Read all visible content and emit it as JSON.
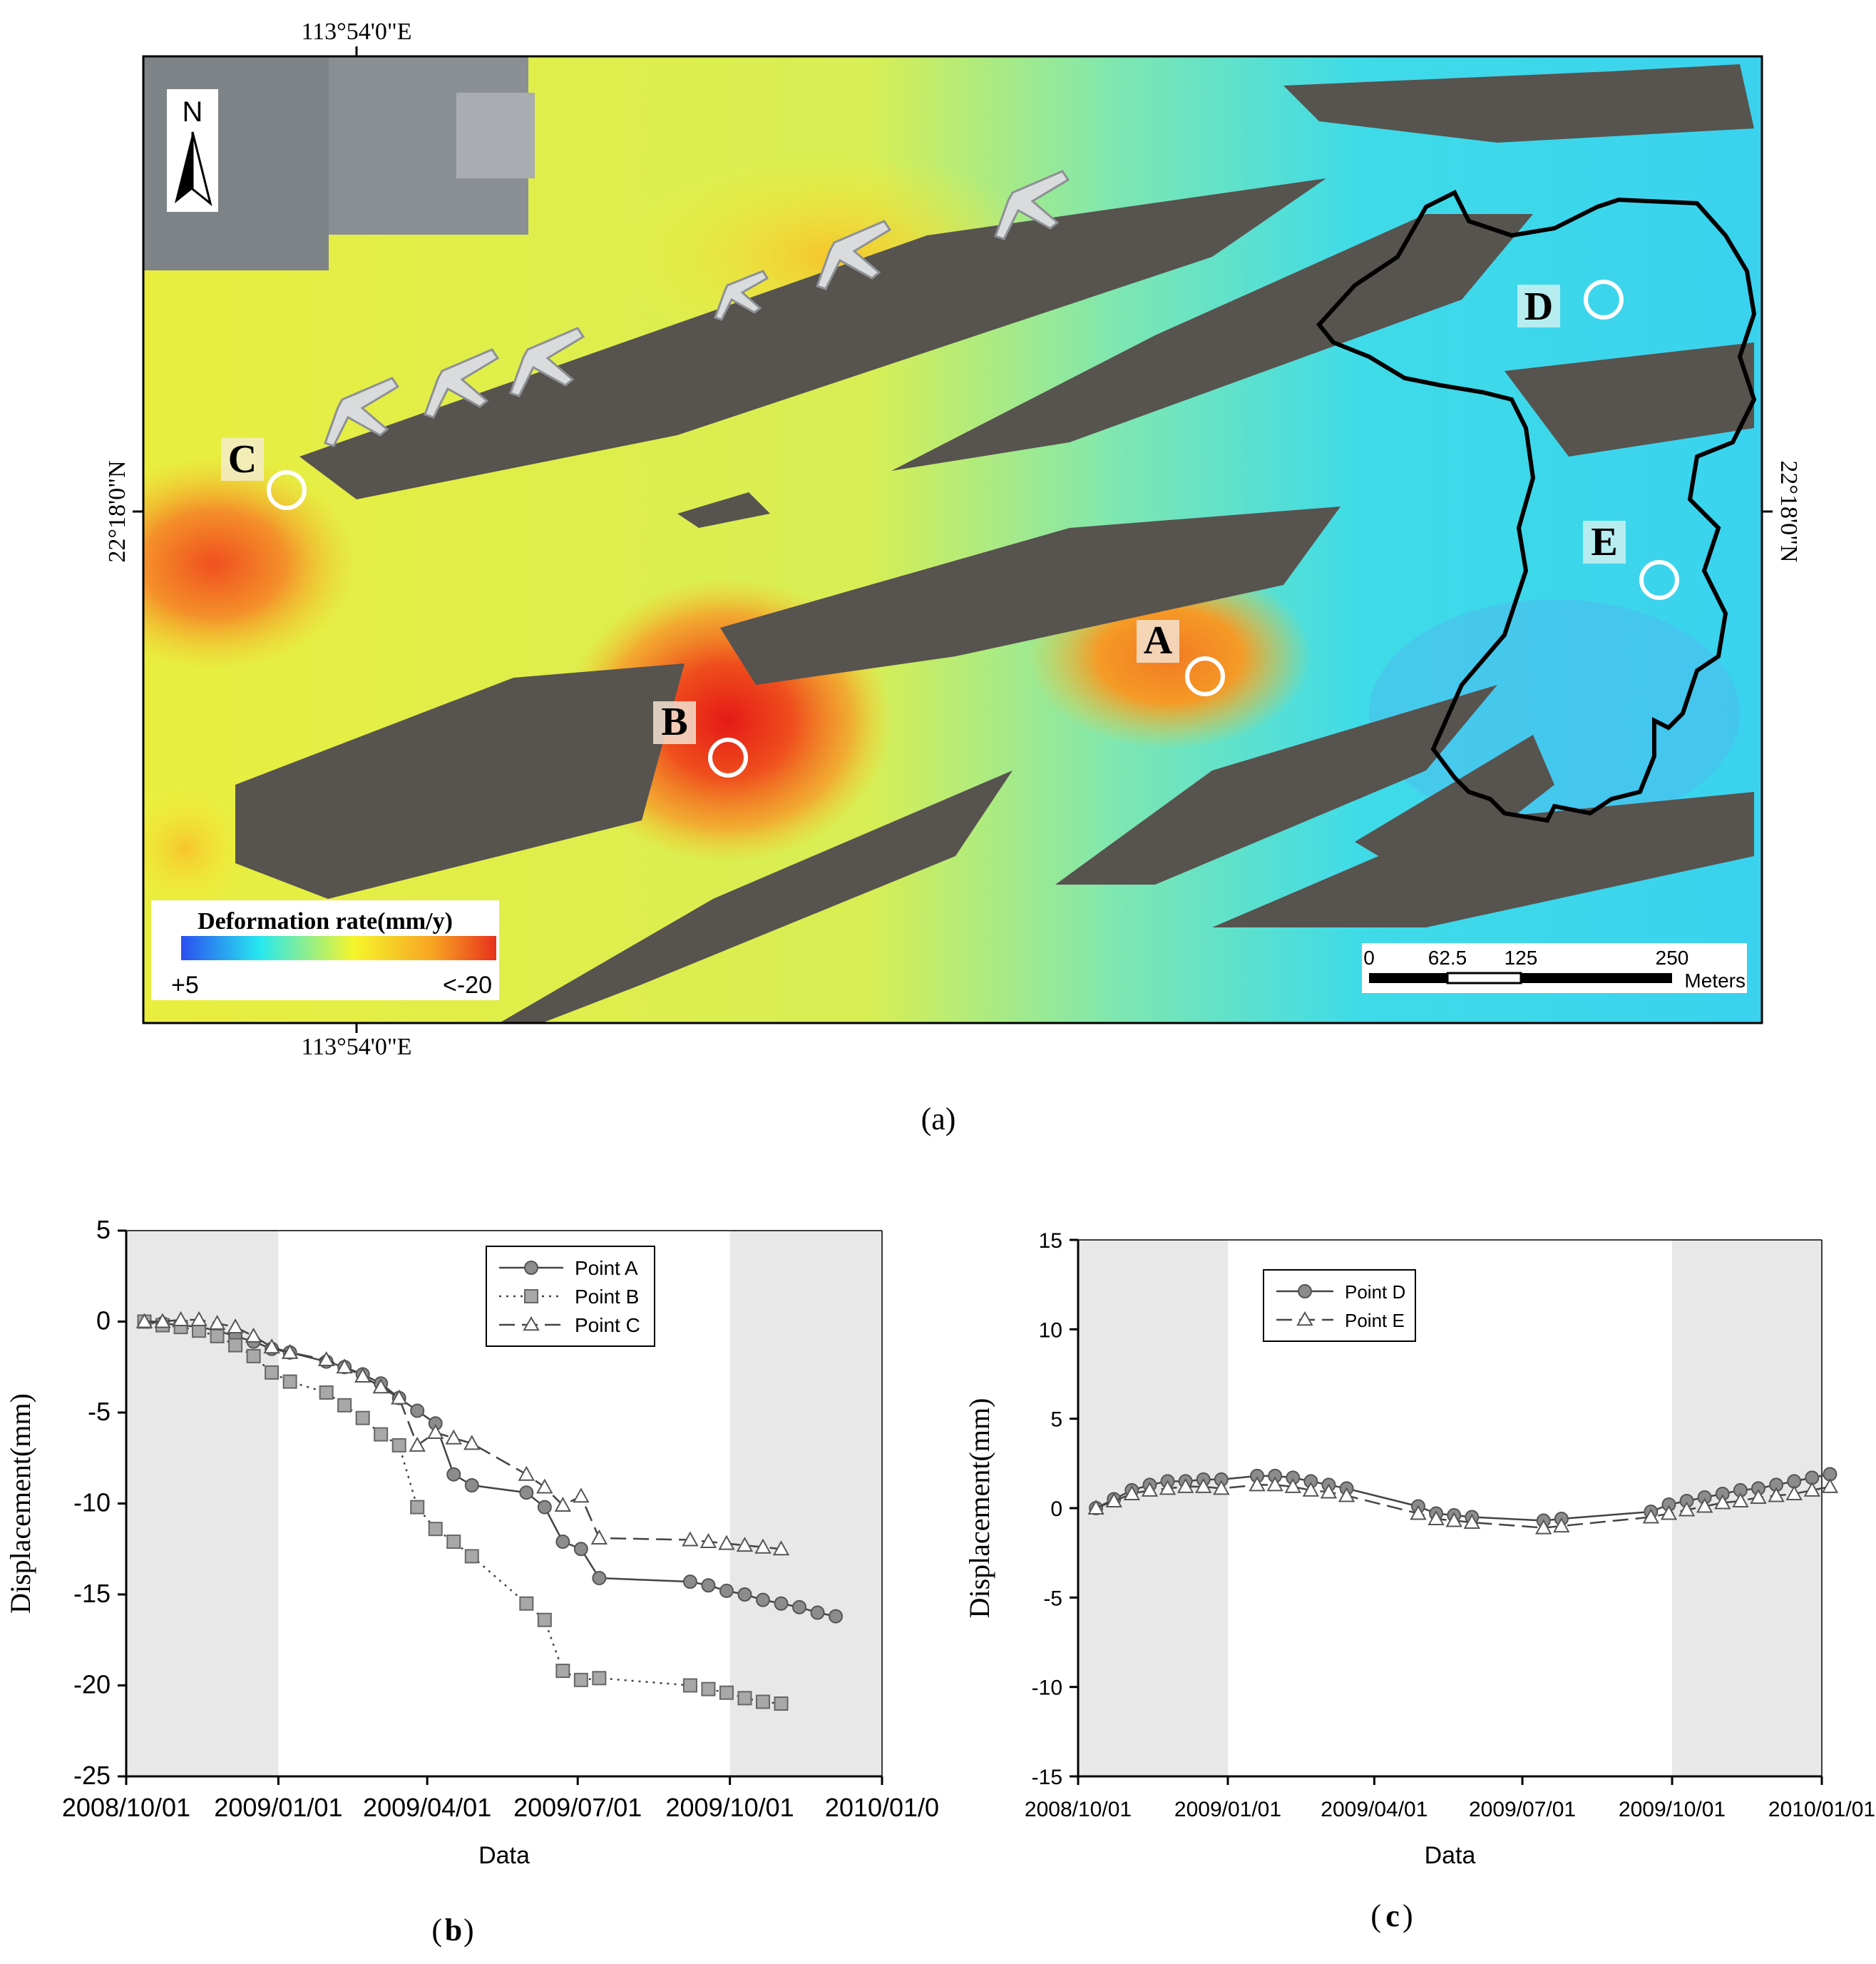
{
  "panel_a": {
    "coord_top": "113°54'0\"E",
    "coord_bottom": "113°54'0\"E",
    "coord_left": "22°18'0\"N",
    "coord_right": "22°18'0\"N",
    "north_label": "N",
    "legend": {
      "title": "Deformation rate(mm/y)",
      "min_label": "+5",
      "max_label": "<-20",
      "colors": [
        "#2b4ff0",
        "#27e8f0",
        "#f6f52a",
        "#f7a323",
        "#e8311b"
      ]
    },
    "scalebar": {
      "ticks": [
        "0",
        "62.5",
        "125",
        "250"
      ],
      "unit": "Meters"
    },
    "points": [
      {
        "label": "A",
        "rate_color": "#f59a24"
      },
      {
        "label": "B",
        "rate_color": "#e8311b"
      },
      {
        "label": "C",
        "rate_color": "#f5b52a"
      },
      {
        "label": "D",
        "rate_color": "#3ad8f0"
      },
      {
        "label": "E",
        "rate_color": "#3ad8f0"
      }
    ]
  },
  "captions": {
    "a": "(a)",
    "a_letter": "a",
    "b_letter": "b",
    "c_letter": "c"
  },
  "chart_data": [
    {
      "type": "line",
      "panel": "b",
      "title": "",
      "xlabel": "Data",
      "ylabel": "Displacement(mm)",
      "x_ticks": [
        "2008/10/01",
        "2009/01/01",
        "2009/04/01",
        "2009/07/01",
        "2009/10/01",
        "2010/01/0"
      ],
      "ylim": [
        -25,
        5
      ],
      "y_ticks": [
        5,
        0,
        -5,
        -10,
        -15,
        -20,
        -25
      ],
      "shaded_periods": [
        "2008/10/01-2009/01/01",
        "2009/10/01-2010/01/01"
      ],
      "legend_position": "top-center",
      "x_days": [
        11,
        22,
        33,
        44,
        55,
        66,
        77,
        88,
        99,
        121,
        132,
        143,
        154,
        165,
        176,
        187,
        198,
        209,
        242,
        253,
        264,
        275,
        286,
        341,
        352,
        363,
        374,
        385,
        396,
        407,
        418,
        429,
        440,
        451,
        462
      ],
      "series": [
        {
          "name": "Point A",
          "marker": "circle",
          "dash": "solid",
          "values": [
            0.0,
            -0.1,
            -0.2,
            -0.3,
            -0.5,
            -0.8,
            -1.1,
            -1.5,
            -1.7,
            -2.2,
            -2.5,
            -2.9,
            -3.4,
            -4.2,
            -4.9,
            -5.6,
            -8.4,
            -9.0,
            -9.4,
            -10.2,
            -12.1,
            -12.5,
            -14.1,
            -14.3,
            -14.5,
            -14.8,
            -15.0,
            -15.3,
            -15.5,
            -15.7,
            -16.0,
            -16.2,
            null,
            null,
            null
          ]
        },
        {
          "name": "Point B",
          "marker": "square",
          "dash": "dotted",
          "values": [
            0.0,
            -0.2,
            -0.3,
            -0.5,
            -0.8,
            -1.3,
            -1.9,
            -2.8,
            -3.3,
            -3.9,
            -4.6,
            -5.3,
            -6.2,
            -6.8,
            -10.2,
            -11.4,
            -12.1,
            -12.9,
            -15.5,
            -16.4,
            -19.2,
            -19.7,
            -19.6,
            -20.0,
            -20.2,
            -20.4,
            -20.7,
            -20.9,
            -21.0,
            null,
            null,
            null,
            null,
            null,
            null
          ]
        },
        {
          "name": "Point C",
          "marker": "triangle",
          "dash": "dashed",
          "values": [
            0.0,
            0.0,
            0.1,
            0.1,
            -0.1,
            -0.3,
            -0.8,
            -1.4,
            -1.7,
            -2.1,
            -2.5,
            -3.0,
            -3.6,
            -4.2,
            -6.8,
            -6.1,
            -6.4,
            -6.7,
            -8.4,
            -9.1,
            -10.1,
            -9.6,
            -11.9,
            -12.0,
            -12.1,
            -12.2,
            -12.3,
            -12.4,
            -12.5,
            null,
            null,
            null,
            null,
            null,
            null
          ]
        }
      ]
    },
    {
      "type": "line",
      "panel": "c",
      "title": "",
      "xlabel": "Data",
      "ylabel": "Displacement(mm)",
      "x_ticks": [
        "2008/10/01",
        "2009/01/01",
        "2009/04/01",
        "2009/07/01",
        "2009/10/01",
        "2010/01/01"
      ],
      "ylim": [
        -15,
        15
      ],
      "y_ticks": [
        15,
        10,
        5,
        0,
        -5,
        -10,
        -15
      ],
      "shaded_periods": [
        "2008/10/01-2009/01/01",
        "2009/10/01-2010/01/01"
      ],
      "legend_position": "top-left",
      "series": [
        {
          "name": "Point D",
          "marker": "circle",
          "dash": "solid"
        },
        {
          "name": "Point E",
          "marker": "triangle",
          "dash": "dashed"
        }
      ]
    }
  ]
}
